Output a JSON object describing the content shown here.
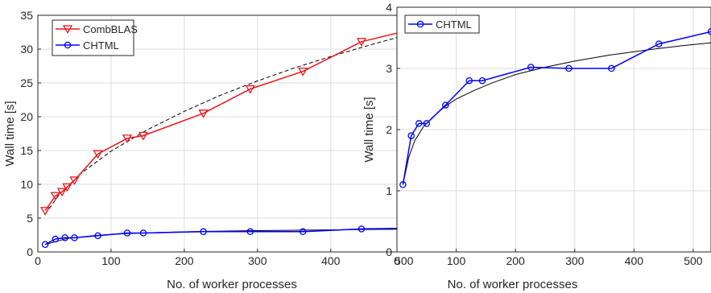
{
  "chart_data": [
    {
      "type": "line",
      "xlabel": "No. of worker processes",
      "ylabel": "Wall time [s]",
      "xlim": [
        0,
        530
      ],
      "ylim": [
        0,
        35
      ],
      "xticks": [
        0,
        100,
        200,
        300,
        400,
        500
      ],
      "yticks": [
        0,
        5,
        10,
        15,
        20,
        25,
        30,
        35
      ],
      "grid": true,
      "legend_position": "top-left",
      "series": [
        {
          "name": "CombBLAS",
          "color": "#e8161b",
          "marker": "triangle-down",
          "x": [
            10,
            24,
            33,
            40,
            50,
            82,
            122,
            144,
            226,
            290,
            362,
            442,
            530
          ],
          "y": [
            6.1,
            8.3,
            8.9,
            9.6,
            10.6,
            14.5,
            16.8,
            17.2,
            20.5,
            24.1,
            26.7,
            31.1,
            33.4
          ]
        },
        {
          "name": "CHTML",
          "color": "#0000ff",
          "marker": "circle",
          "x": [
            10,
            24,
            37,
            50,
            82,
            122,
            144,
            226,
            290,
            362,
            442,
            530
          ],
          "y": [
            1.1,
            1.9,
            2.1,
            2.1,
            2.4,
            2.8,
            2.8,
            3.0,
            3.0,
            3.0,
            3.4,
            3.55
          ]
        }
      ],
      "fits": [
        {
          "style": "dashed",
          "color": "#000000",
          "x": [
            10,
            30,
            60,
            100,
            150,
            200,
            250,
            300,
            350,
            400,
            450,
            500,
            530
          ],
          "y": [
            5.6,
            8.6,
            11.7,
            14.9,
            18.1,
            20.8,
            23.2,
            25.3,
            27.2,
            28.9,
            30.5,
            32.0,
            32.9
          ]
        },
        {
          "style": "solid",
          "color": "#000000",
          "x": [
            10,
            40,
            80,
            120,
            170,
            230,
            300,
            380,
            460,
            530
          ],
          "y": [
            1.1,
            2.0,
            2.45,
            2.7,
            2.9,
            3.05,
            3.15,
            3.25,
            3.33,
            3.4
          ]
        }
      ]
    },
    {
      "type": "line",
      "xlabel": "No. of worker processes",
      "ylabel": "Wall time [s]",
      "xlim": [
        0,
        530
      ],
      "ylim": [
        0,
        4
      ],
      "xticks": [
        0,
        100,
        200,
        300,
        400,
        500
      ],
      "yticks": [
        0,
        1,
        2,
        3,
        4
      ],
      "grid": true,
      "legend_position": "top-left",
      "series": [
        {
          "name": "CHTML",
          "color": "#0000ff",
          "marker": "circle",
          "x": [
            10,
            24,
            37,
            50,
            82,
            122,
            144,
            226,
            290,
            362,
            442,
            530
          ],
          "y": [
            1.1,
            1.9,
            2.1,
            2.1,
            2.4,
            2.8,
            2.8,
            3.02,
            3.0,
            3.0,
            3.4,
            3.6
          ]
        }
      ],
      "fits": [
        {
          "style": "solid",
          "color": "#000000",
          "x": [
            10,
            20,
            30,
            45,
            60,
            80,
            100,
            130,
            160,
            200,
            250,
            300,
            360,
            420,
            480,
            530
          ],
          "y": [
            1.1,
            1.55,
            1.82,
            2.05,
            2.2,
            2.37,
            2.5,
            2.64,
            2.76,
            2.9,
            3.02,
            3.12,
            3.22,
            3.3,
            3.37,
            3.42
          ]
        }
      ]
    }
  ]
}
